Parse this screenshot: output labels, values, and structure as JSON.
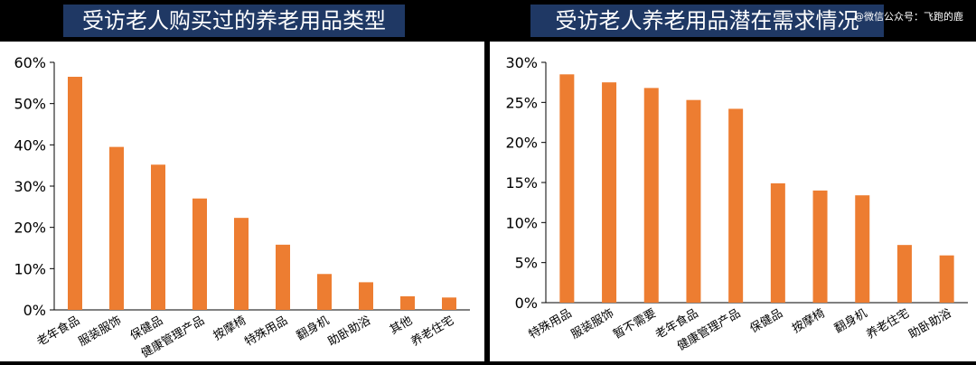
{
  "watermark": "@微信公众号：飞跑的鹿",
  "charts": [
    {
      "type": "bar",
      "title": "受访老人购买过的养老用品类型",
      "color": "#ed7d31",
      "categories": [
        "老年食品",
        "服装服饰",
        "保健品",
        "健康管理产品",
        "按摩椅",
        "特殊用品",
        "翻身机",
        "助卧助浴",
        "其他",
        "养老住宅"
      ],
      "values": [
        56.5,
        39.5,
        35.2,
        27.0,
        22.3,
        15.8,
        8.7,
        6.7,
        3.3,
        3.0
      ],
      "yticks": [
        "0%",
        "10%",
        "20%",
        "30%",
        "40%",
        "50%",
        "60%"
      ],
      "ylim": [
        0,
        60
      ]
    },
    {
      "type": "bar",
      "title": "受访老人养老用品潜在需求情况",
      "color": "#ed7d31",
      "categories": [
        "特殊用品",
        "服装服饰",
        "暂不需要",
        "老年食品",
        "健康管理产品",
        "保健品",
        "按摩椅",
        "翻身机",
        "养老住宅",
        "助卧助浴"
      ],
      "values": [
        28.5,
        27.5,
        26.8,
        25.3,
        24.2,
        14.9,
        14.0,
        13.4,
        7.2,
        5.9
      ],
      "yticks": [
        "0%",
        "5%",
        "10%",
        "15%",
        "20%",
        "25%",
        "30%"
      ],
      "ylim": [
        0,
        30
      ]
    }
  ]
}
